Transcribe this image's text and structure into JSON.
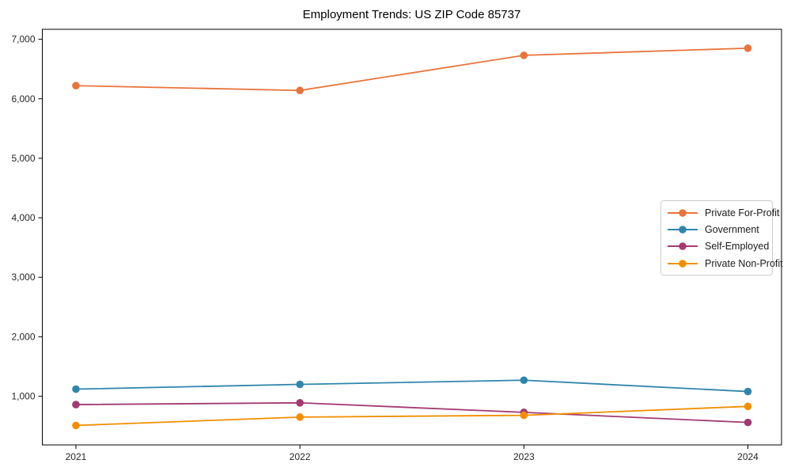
{
  "figure": {
    "background": "#ffffff",
    "axis_color": "#000000",
    "tick_label_color": "#262626"
  },
  "chart_data": {
    "type": "line",
    "title": "Employment Trends: US ZIP Code 85737",
    "xlabel": "",
    "ylabel": "",
    "x": [
      2021,
      2022,
      2023,
      2024
    ],
    "x_tick_labels": [
      "2021",
      "2022",
      "2023",
      "2024"
    ],
    "y_ticks": [
      1000,
      2000,
      3000,
      4000,
      5000,
      6000,
      7000
    ],
    "y_tick_labels": [
      "1,000",
      "2,000",
      "3,000",
      "4,000",
      "5,000",
      "6,000",
      "7,000"
    ],
    "xlim": [
      2020.85,
      2024.15
    ],
    "ylim": [
      182.5,
      7167.5
    ],
    "grid": false,
    "legend_position": "center-right",
    "series": [
      {
        "name": "Private For-Profit",
        "color": "#E8743B",
        "values": [
          6220,
          6140,
          6730,
          6850
        ]
      },
      {
        "name": "Government",
        "color": "#2E86AB",
        "values": [
          1120,
          1200,
          1270,
          1080
        ]
      },
      {
        "name": "Self-Employed",
        "color": "#A23B72",
        "values": [
          860,
          890,
          730,
          560
        ]
      },
      {
        "name": "Private Non-Profit",
        "color": "#F18F01",
        "values": [
          510,
          650,
          680,
          830
        ]
      }
    ]
  }
}
